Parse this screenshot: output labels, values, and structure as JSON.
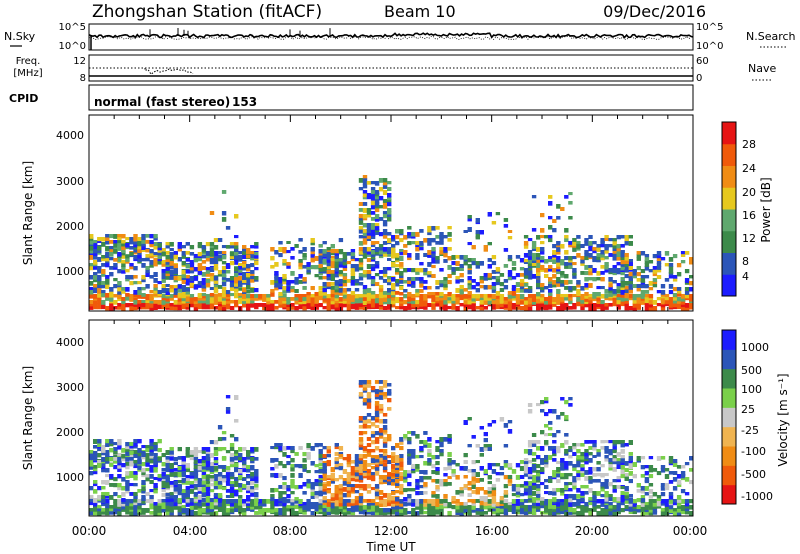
{
  "header": {
    "station": "Zhongshan Station (fitACF)",
    "beam": "Beam 10",
    "date": "09/Dec/2016"
  },
  "noise_panel": {
    "left_label": "N.Sky",
    "left_ticks": [
      "10^5",
      "10^0"
    ],
    "right_ticks": [
      "10^5",
      "10^0"
    ],
    "right_label": "N.Search"
  },
  "freq_panel": {
    "left_label_line1": "Freq.",
    "left_label_line2": "[MHz]",
    "left_ticks": [
      "12",
      "8"
    ],
    "right_ticks": [
      "60",
      "0"
    ],
    "right_label": "Nave"
  },
  "cpid_panel": {
    "label": "CPID",
    "mode": "normal (fast stereo)",
    "cpid": "153"
  },
  "colors": {
    "power": [
      "#1c1cff",
      "#2b55b8",
      "#3c8a4a",
      "#5fa86e",
      "#e6c81e",
      "#f08c14",
      "#f05a0a",
      "#e61414"
    ],
    "velocity": [
      "#e61414",
      "#f05a0a",
      "#f08c14",
      "#f0b450",
      "#c8c8c8",
      "#7ad04a",
      "#3c8a4a",
      "#2b55b8",
      "#1c1cff"
    ]
  },
  "chart_data": [
    {
      "type": "heatmap",
      "name": "power",
      "ylabel": "Slant Range [km]",
      "y_ticks": [
        "4000",
        "3000",
        "2000",
        "1000"
      ],
      "ylim": [
        180,
        4500
      ],
      "xlim": [
        0,
        24
      ],
      "colorbar": {
        "label": "Power [dB]",
        "ticks": [
          "28",
          "24",
          "20",
          "16",
          "12",
          "8",
          "4"
        ],
        "range": [
          0,
          32
        ]
      }
    },
    {
      "type": "heatmap",
      "name": "velocity",
      "ylabel": "Slant Range [km]",
      "y_ticks": [
        "4000",
        "3000",
        "2000",
        "1000"
      ],
      "ylim": [
        180,
        4500
      ],
      "xlim": [
        0,
        24
      ],
      "colorbar": {
        "label": "Velocity  [m s⁻¹]",
        "ticks": [
          "1000",
          "500",
          "100",
          "25",
          "-25",
          "-100",
          "-500",
          "-1000"
        ]
      }
    }
  ],
  "time_axis": {
    "ticks": [
      "00:00",
      "04:00",
      "08:00",
      "12:00",
      "16:00",
      "20:00",
      "00:00"
    ],
    "label": "Time UT"
  }
}
